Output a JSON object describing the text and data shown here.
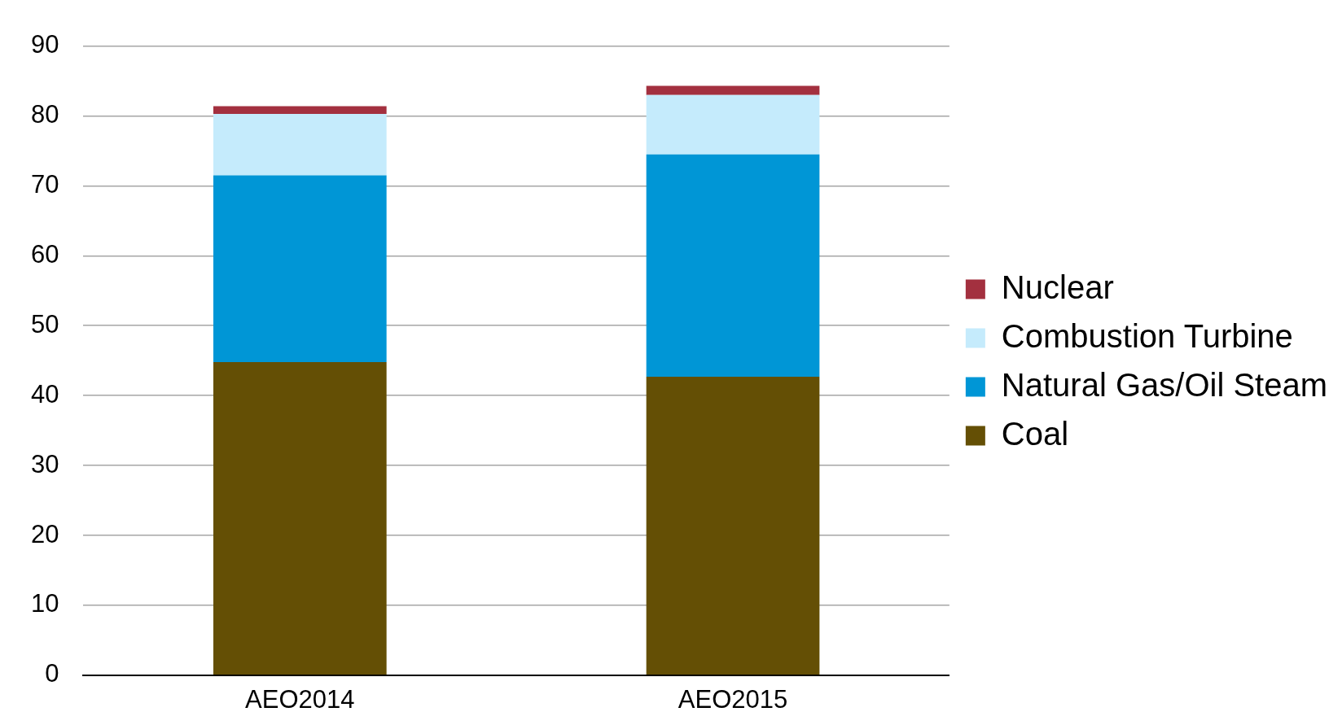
{
  "chart_data": {
    "type": "bar",
    "stacked": true,
    "categories": [
      "AEO2014",
      "AEO2015"
    ],
    "series": [
      {
        "name": "Coal",
        "color": "#644f05",
        "values": [
          44.8,
          42.7
        ]
      },
      {
        "name": "Natural Gas/Oil Steam",
        "color": "#0096d6",
        "values": [
          26.7,
          31.8
        ]
      },
      {
        "name": "Combustion Turbine",
        "color": "#c5ebfc",
        "values": [
          8.8,
          8.5
        ]
      },
      {
        "name": "Nuclear",
        "color": "#a3303f",
        "values": [
          1.1,
          1.3
        ]
      }
    ],
    "ylim": [
      0,
      90
    ],
    "yticks": [
      0,
      10,
      20,
      30,
      40,
      50,
      60,
      70,
      80,
      90
    ],
    "grid": "y",
    "legend": "right"
  }
}
